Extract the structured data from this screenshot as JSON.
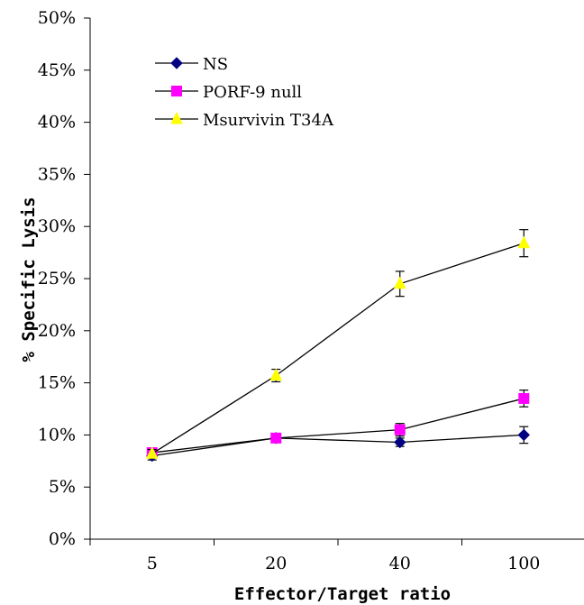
{
  "chart_data": {
    "type": "line",
    "title": "",
    "xlabel": "Effector/Target ratio",
    "ylabel": "% Specific Lysis",
    "categories": [
      "5",
      "20",
      "40",
      "100"
    ],
    "y_ticks": [
      "0%",
      "5%",
      "10%",
      "15%",
      "20%",
      "25%",
      "30%",
      "35%",
      "40%",
      "45%",
      "50%"
    ],
    "ylim": [
      0,
      50
    ],
    "grid": false,
    "legend_position": "top-left",
    "series": [
      {
        "name": "NS",
        "values": [
          8.0,
          9.7,
          9.3,
          10.0
        ],
        "errors": [
          0.4,
          0.3,
          0.4,
          0.8
        ],
        "color": "#000080",
        "marker": "diamond"
      },
      {
        "name": "PORF-9 null",
        "values": [
          8.3,
          9.7,
          10.5,
          13.5
        ],
        "errors": [
          0.3,
          0.3,
          0.6,
          0.8
        ],
        "color": "#ff00ff",
        "marker": "square"
      },
      {
        "name": "Msurvivin T34A",
        "values": [
          8.2,
          15.7,
          24.5,
          28.4
        ],
        "errors": [
          0.4,
          0.6,
          1.2,
          1.3
        ],
        "color": "#ffff00",
        "marker": "triangle"
      }
    ]
  }
}
